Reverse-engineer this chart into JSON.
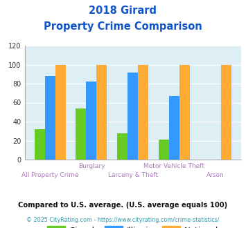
{
  "title_line1": "2018 Girard",
  "title_line2": "Property Crime Comparison",
  "categories": [
    "All Property Crime",
    "Burglary",
    "Larceny & Theft",
    "Motor Vehicle Theft",
    "Arson"
  ],
  "x_labels_top": [
    "",
    "Burglary",
    "",
    "Motor Vehicle Theft",
    ""
  ],
  "x_labels_bottom": [
    "All Property Crime",
    "",
    "Larceny & Theft",
    "",
    "Arson"
  ],
  "girard": [
    32,
    54,
    28,
    21,
    0
  ],
  "illinois": [
    88,
    82,
    92,
    67,
    0
  ],
  "national": [
    100,
    100,
    100,
    100,
    100
  ],
  "girard_color": "#66cc22",
  "illinois_color": "#3399ff",
  "national_color": "#ffaa33",
  "bg_color": "#ddeef5",
  "title_color": "#1155cc",
  "xlabel_color": "#aa77bb",
  "legend_text_color": "#222222",
  "footer_note": "Compared to U.S. average. (U.S. average equals 100)",
  "footer_copy": "© 2025 CityRating.com - https://www.cityrating.com/crime-statistics/",
  "footer_note_color": "#111111",
  "footer_url_color": "#3399aa",
  "ylim": [
    0,
    120
  ],
  "yticks": [
    0,
    20,
    40,
    60,
    80,
    100,
    120
  ]
}
